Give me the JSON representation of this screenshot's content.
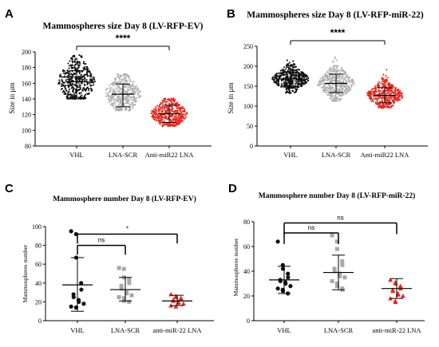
{
  "chart_data": [
    {
      "panel": "A",
      "type": "scatter",
      "title": "Mammospheres size Day 8 (LV-RFP-EV)",
      "ylabel": "Size in µm",
      "ylim": [
        80,
        200
      ],
      "yticks": [
        80,
        100,
        120,
        140,
        160,
        180,
        200
      ],
      "categories": [
        "VHL",
        "LNA-SCR",
        "Anti-miR22 LNA"
      ],
      "colors": [
        "#111111",
        "#b0b0b0",
        "#e8281e"
      ],
      "summary": [
        {
          "mean": 162,
          "sd_low": 140,
          "sd_high": 176,
          "min": 140,
          "max": 196
        },
        {
          "mean": 146,
          "sd_low": 130,
          "sd_high": 159,
          "min": 125,
          "max": 172
        },
        {
          "mean": 121,
          "sd_low": 110,
          "sd_high": 132,
          "min": 105,
          "max": 141
        }
      ],
      "significance": [
        {
          "from": 0,
          "to": 2,
          "label": "****"
        }
      ]
    },
    {
      "panel": "B",
      "type": "scatter",
      "title": "Mammospheres size Day 8 (LV-RFP-miR-22)",
      "ylabel": "Size in µm",
      "ylim": [
        0,
        250
      ],
      "yticks": [
        0,
        50,
        100,
        150,
        200,
        250
      ],
      "categories": [
        "VHL",
        "LNA-SCR",
        "Anti-miR22 LNA"
      ],
      "colors": [
        "#111111",
        "#b0b0b0",
        "#e8281e"
      ],
      "summary": [
        {
          "mean": 168,
          "sd_low": 148,
          "sd_high": 185,
          "min": 132,
          "max": 232
        },
        {
          "mean": 157,
          "sd_low": 134,
          "sd_high": 180,
          "min": 112,
          "max": 232
        },
        {
          "mean": 127,
          "sd_low": 108,
          "sd_high": 146,
          "min": 95,
          "max": 212
        }
      ],
      "significance": [
        {
          "from": 0,
          "to": 2,
          "label": "****"
        }
      ]
    },
    {
      "panel": "C",
      "type": "scatter",
      "title": "Mammosphere number Day 8 (LV-RFP-EV)",
      "ylabel": "Mammospheres number",
      "ylim": [
        0,
        100
      ],
      "yticks": [
        0,
        20,
        40,
        60,
        80,
        100
      ],
      "categories": [
        "VHL",
        "LNA-SCR",
        "anti-miR-22 LNA"
      ],
      "colors": [
        "#111111",
        "#a8a8a8",
        "#e8281e"
      ],
      "markers": [
        "circle",
        "square",
        "triangle"
      ],
      "points": [
        [
          95,
          92,
          67,
          40,
          33,
          28,
          25,
          22,
          20,
          18,
          15,
          14,
          14
        ],
        [
          56,
          55,
          46,
          44,
          40,
          37,
          34,
          30,
          29,
          27,
          25,
          24,
          21,
          20
        ],
        [
          28,
          26,
          25,
          24,
          23,
          22,
          21,
          20,
          19,
          18,
          16,
          15
        ]
      ],
      "summary": [
        {
          "mean": 38,
          "sd_low": 10,
          "sd_high": 67
        },
        {
          "mean": 33,
          "sd_low": 21,
          "sd_high": 46
        },
        {
          "mean": 21,
          "sd_low": 16,
          "sd_high": 27
        }
      ],
      "significance": [
        {
          "from": 0,
          "to": 1,
          "label": "ns",
          "level": 80
        },
        {
          "from": 0,
          "to": 2,
          "label": "*",
          "level": 92
        }
      ]
    },
    {
      "panel": "D",
      "type": "scatter",
      "title": "Mammosphere number Day 8 (LV-RFP-miR-22)",
      "ylabel": "Mammospheres number",
      "ylim": [
        0,
        80
      ],
      "yticks": [
        0,
        20,
        40,
        60,
        80
      ],
      "categories": [
        "VHL",
        "LNA-SCR",
        "anti-miR-22 LNA"
      ],
      "colors": [
        "#111111",
        "#a8a8a8",
        "#e8281e"
      ],
      "markers": [
        "circle",
        "square",
        "triangle"
      ],
      "points": [
        [
          64,
          45,
          42,
          38,
          35,
          33,
          32,
          31,
          30,
          28,
          26,
          25,
          24,
          22
        ],
        [
          69,
          64,
          58,
          48,
          45,
          42,
          40,
          38,
          36,
          35,
          32,
          30,
          28,
          26,
          25
        ],
        [
          33,
          31,
          30,
          28,
          26,
          25,
          24,
          22,
          21,
          20,
          18,
          16,
          15
        ]
      ],
      "summary": [
        {
          "mean": 33,
          "sd_low": 22,
          "sd_high": 44
        },
        {
          "mean": 39,
          "sd_low": 25,
          "sd_high": 53
        },
        {
          "mean": 26,
          "sd_low": 18,
          "sd_high": 34
        }
      ],
      "significance": [
        {
          "from": 0,
          "to": 1,
          "label": "ns",
          "level": 71
        },
        {
          "from": 0,
          "to": 2,
          "label": "ns",
          "level": 79
        }
      ]
    }
  ]
}
